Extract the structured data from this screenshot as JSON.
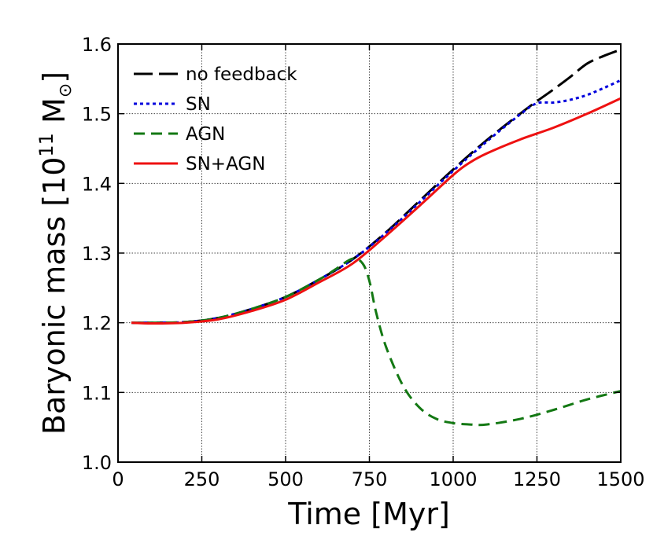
{
  "chart_data": {
    "type": "line",
    "title": "",
    "xlabel": "Time [Myr]",
    "ylabel": {
      "prefix": "Baryonic mass [10",
      "exponent": "11",
      "unit": " M",
      "sun_symbol": "⊙",
      "suffix": "]"
    },
    "xlim": [
      0,
      1500
    ],
    "ylim": [
      1.0,
      1.6
    ],
    "xticks": [
      0,
      250,
      500,
      750,
      1000,
      1250,
      1500
    ],
    "xtick_labels": [
      "0",
      "250",
      "500",
      "750",
      "1000",
      "1250",
      "1500"
    ],
    "yticks": [
      1.0,
      1.1,
      1.2,
      1.3,
      1.4,
      1.5,
      1.6
    ],
    "ytick_labels": [
      "1.0",
      "1.1",
      "1.2",
      "1.3",
      "1.4",
      "1.5",
      "1.6"
    ],
    "grid": true,
    "legend_position": "top-left",
    "series": [
      {
        "name": "no feedback",
        "color": "#000000",
        "style": "longdash",
        "x": [
          40,
          100,
          200,
          300,
          400,
          500,
          600,
          700,
          800,
          900,
          1000,
          1100,
          1200,
          1250,
          1300,
          1350,
          1400,
          1450,
          1500
        ],
        "y": [
          1.2,
          1.2,
          1.201,
          1.207,
          1.22,
          1.237,
          1.262,
          1.291,
          1.33,
          1.375,
          1.42,
          1.462,
          1.5,
          1.518,
          1.535,
          1.553,
          1.572,
          1.583,
          1.592
        ]
      },
      {
        "name": "SN",
        "color": "#0000dd",
        "style": "dotted",
        "x": [
          40,
          100,
          200,
          300,
          400,
          500,
          600,
          700,
          800,
          900,
          1000,
          1100,
          1200,
          1250,
          1300,
          1350,
          1400,
          1450,
          1500
        ],
        "y": [
          1.2,
          1.2,
          1.201,
          1.207,
          1.22,
          1.237,
          1.262,
          1.291,
          1.329,
          1.373,
          1.418,
          1.46,
          1.499,
          1.515,
          1.516,
          1.52,
          1.527,
          1.537,
          1.548
        ]
      },
      {
        "name": "AGN",
        "color": "#137813",
        "style": "dashed",
        "x": [
          40,
          100,
          200,
          300,
          400,
          500,
          600,
          650,
          700,
          730,
          750,
          770,
          800,
          850,
          900,
          950,
          1000,
          1050,
          1100,
          1200,
          1300,
          1400,
          1500
        ],
        "y": [
          1.2,
          1.2,
          1.201,
          1.207,
          1.22,
          1.237,
          1.262,
          1.277,
          1.292,
          1.285,
          1.26,
          1.215,
          1.165,
          1.11,
          1.078,
          1.062,
          1.056,
          1.054,
          1.054,
          1.062,
          1.075,
          1.09,
          1.102
        ]
      },
      {
        "name": "SN+AGN",
        "color": "#ee1111",
        "style": "solid",
        "x": [
          40,
          100,
          200,
          300,
          400,
          500,
          600,
          700,
          800,
          900,
          1000,
          1050,
          1100,
          1200,
          1300,
          1400,
          1500
        ],
        "y": [
          1.2,
          1.199,
          1.2,
          1.205,
          1.217,
          1.233,
          1.258,
          1.285,
          1.325,
          1.368,
          1.412,
          1.43,
          1.443,
          1.463,
          1.48,
          1.5,
          1.522
        ]
      }
    ]
  }
}
